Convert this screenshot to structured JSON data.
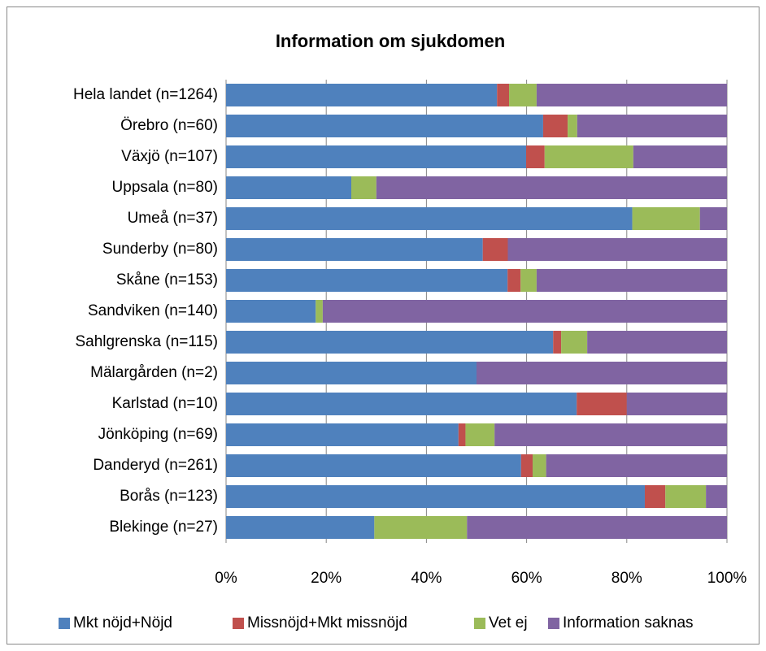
{
  "chart_data": {
    "type": "stacked_barh",
    "title": "Information om sjukdomen",
    "categories": [
      "Hela landet (n=1264)",
      "Örebro (n=60)",
      "Växjö (n=107)",
      "Uppsala (n=80)",
      "Umeå (n=37)",
      "Sunderby (n=80)",
      "Skåne (n=153)",
      "Sandviken (n=140)",
      "Sahlgrenska (n=115)",
      "Mälargården (n=2)",
      "Karlstad (n=10)",
      "Jönköping (n=69)",
      "Danderyd (n=261)",
      "Borås (n=123)",
      "Blekinge (n=27)"
    ],
    "series": [
      {
        "name": "Mkt nöjd+Nöjd",
        "color": "#4f81bd",
        "values": [
          54.1,
          63.3,
          59.9,
          25,
          81.1,
          51.25,
          56.2,
          17.9,
          65.3,
          50,
          70,
          46.4,
          58.9,
          83.6,
          29.6
        ]
      },
      {
        "name": "Missnöjd+Mkt missnöjd",
        "color": "#c0504d",
        "values": [
          2.4,
          4.9,
          3.7,
          0,
          0,
          5,
          2.6,
          0,
          1.6,
          0,
          10,
          1.4,
          2.3,
          4.1,
          0
        ]
      },
      {
        "name": "Vet ej",
        "color": "#9bbb59",
        "values": [
          5.5,
          1.9,
          17.7,
          5,
          13.5,
          0,
          3.2,
          1.4,
          5.2,
          0,
          0,
          5.8,
          2.7,
          8.1,
          18.5
        ]
      },
      {
        "name": "Information saknas",
        "color": "#8064a2",
        "values": [
          38.0,
          29.9,
          18.7,
          70,
          5.4,
          43.75,
          38.0,
          80.7,
          27.9,
          50,
          20,
          46.4,
          36.1,
          4.2,
          51.9
        ]
      }
    ],
    "xlim": [
      0,
      100
    ],
    "xticks": [
      {
        "value": 0,
        "label": "0%"
      },
      {
        "value": 20,
        "label": "20%"
      },
      {
        "value": 40,
        "label": "40%"
      },
      {
        "value": 60,
        "label": "60%"
      },
      {
        "value": 80,
        "label": "80%"
      },
      {
        "value": 100,
        "label": "100%"
      }
    ],
    "grid": true,
    "legend": "bottom"
  }
}
